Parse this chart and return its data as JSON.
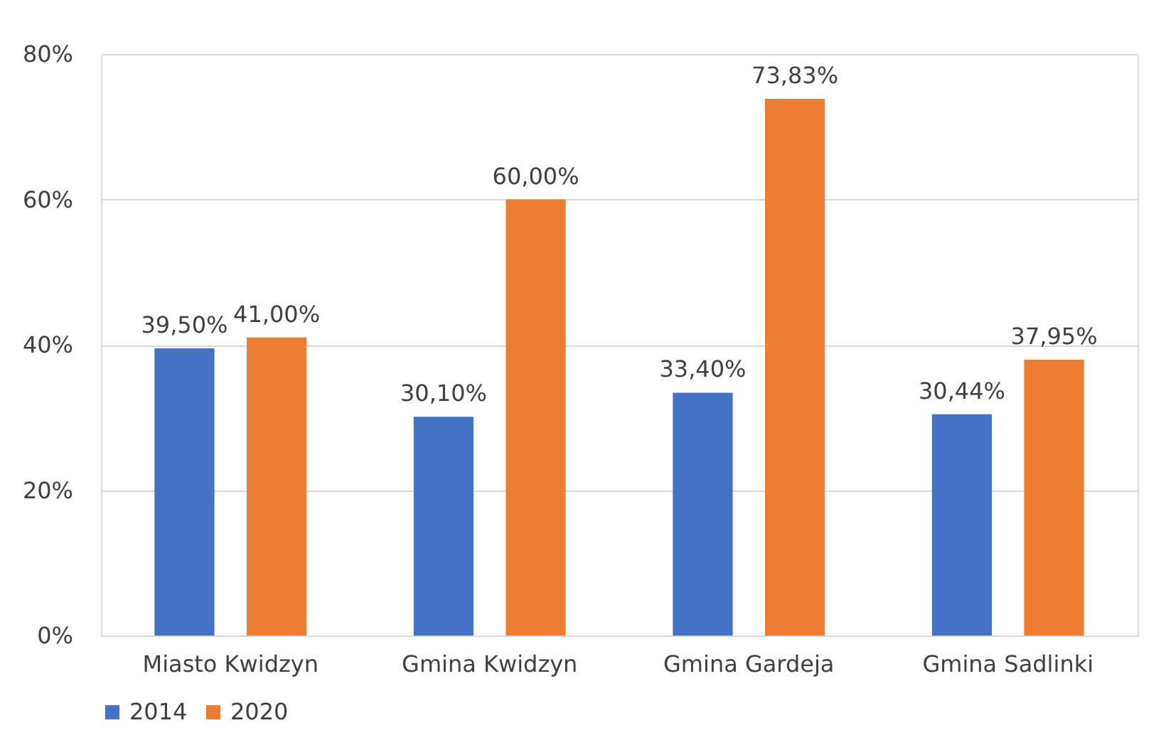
{
  "chart_data": {
    "type": "bar",
    "categories": [
      "Miasto Kwidzyn",
      "Gmina Kwidzyn",
      "Gmina Gardeja",
      "Gmina Sadlinki"
    ],
    "series": [
      {
        "name": "2014",
        "color": "#4472c4",
        "values": [
          39.5,
          30.1,
          33.4,
          30.44
        ],
        "value_labels": [
          "39,50%",
          "30,10%",
          "33,40%",
          "30,44%"
        ]
      },
      {
        "name": "2020",
        "color": "#ed7d31",
        "values": [
          41.0,
          60.0,
          73.83,
          37.95
        ],
        "value_labels": [
          "41,00%",
          "60,00%",
          "73,83%",
          "37,95%"
        ]
      }
    ],
    "ylim": [
      0,
      80
    ],
    "yticks": [
      {
        "value": 0,
        "label": "0%"
      },
      {
        "value": 20,
        "label": "20%"
      },
      {
        "value": 40,
        "label": "40%"
      },
      {
        "value": 60,
        "label": "60%"
      },
      {
        "value": 80,
        "label": "80%"
      }
    ],
    "grid": "y",
    "legend": "bottom"
  }
}
